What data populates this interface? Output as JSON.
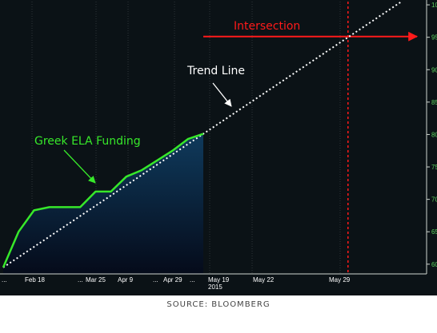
{
  "chart_data": {
    "type": "line",
    "x_ticks": [
      "...",
      "Feb 18",
      "...",
      "Mar 25",
      "Apr 9",
      "...",
      "Apr 29",
      "...",
      "May 19",
      "May 22",
      "May 29"
    ],
    "x_year_label": "2015",
    "y_ticks": [
      "60",
      "65",
      "70",
      "75",
      "80",
      "85",
      "90",
      "95",
      "10"
    ],
    "ylim": [
      58.5,
      100.5
    ],
    "series": [
      {
        "name": "Greek ELA Funding",
        "x_idx": [
          0,
          1,
          2,
          3,
          4,
          5,
          6,
          7,
          8,
          9,
          10,
          11,
          12,
          13
        ],
        "values": [
          59.5,
          65.0,
          68.3,
          68.8,
          68.8,
          68.8,
          71.2,
          71.2,
          73.5,
          74.5,
          76.0,
          77.5,
          79.3,
          80.1
        ]
      }
    ],
    "trend_line": {
      "from": [
        0,
        59.5
      ],
      "to": [
        13,
        80.1
      ],
      "extended_to_y": 100.5
    },
    "intersection": {
      "x": "May 29",
      "y": 95
    },
    "annotations": {
      "intersection": "Intersection",
      "trend_line": "Trend Line",
      "series_label": "Greek ELA Funding"
    },
    "colors": {
      "background": "#0b1216",
      "area_top": "#0f3a5c",
      "area_bottom": "#050b1a",
      "series": "#37e82a",
      "trend": "#ffffff",
      "intersection": "#ff1a1a",
      "axis_text": "#ffffff",
      "y_axis_text": "#5fd35f",
      "label_series": "#37e82a",
      "label_trend": "#ffffff"
    }
  },
  "footer": {
    "source": "SOURCE: BLOOMBERG"
  }
}
